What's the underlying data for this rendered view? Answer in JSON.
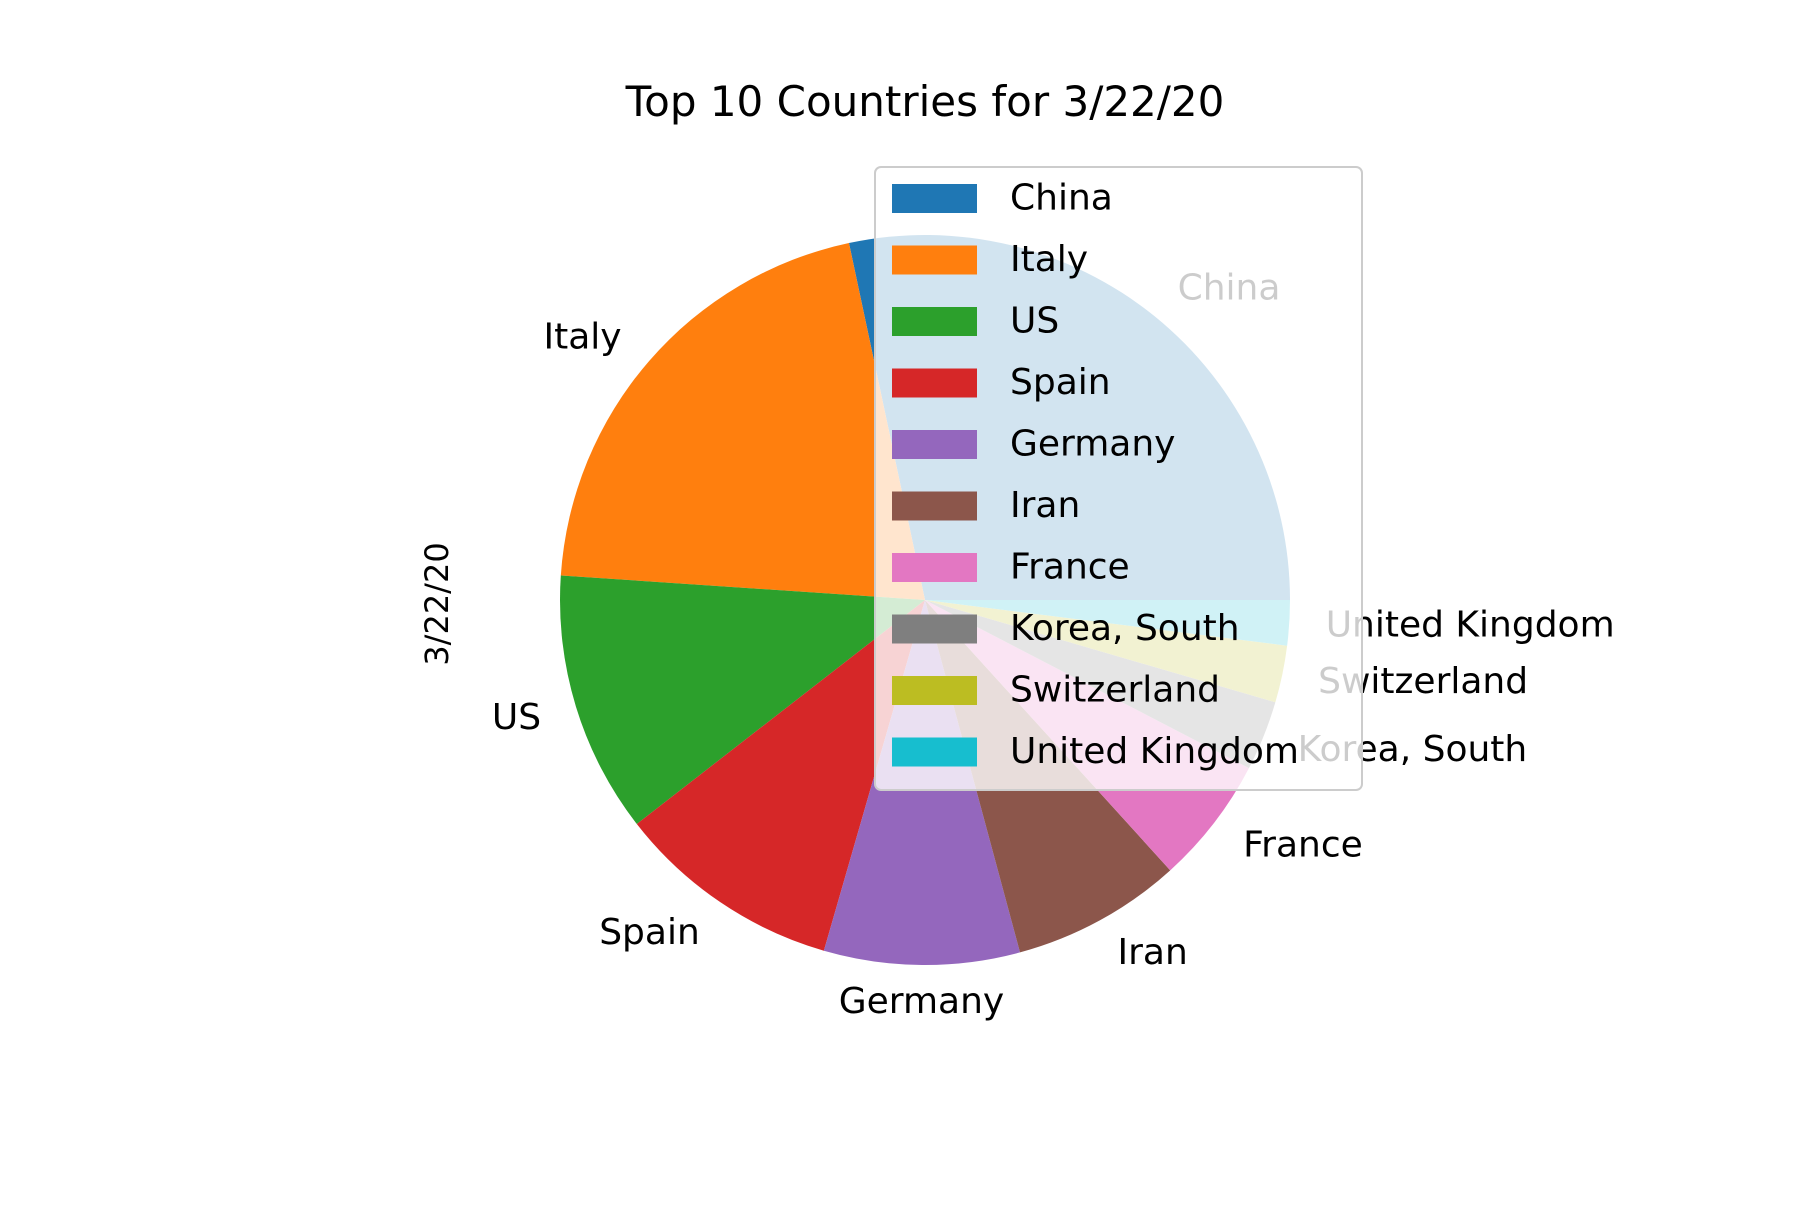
{
  "chart_data": {
    "type": "pie",
    "title": "Top 10 Countries for 3/22/20",
    "ylabel": "3/22/20",
    "start_angle_deg": 0,
    "direction": "counterclockwise",
    "legend_position": "upper-right",
    "legend_labels": [
      "China",
      "Italy",
      "US",
      "Spain",
      "Germany",
      "Iran",
      "France",
      "Korea, South",
      "Switzerland",
      "United Kingdom"
    ],
    "slices": [
      {
        "label": "China",
        "value": 81397,
        "color": "#1f77b4"
      },
      {
        "label": "Italy",
        "value": 59138,
        "color": "#ff7f0e"
      },
      {
        "label": "US",
        "value": 33272,
        "color": "#2ca02c"
      },
      {
        "label": "Spain",
        "value": 28768,
        "color": "#d62728"
      },
      {
        "label": "Germany",
        "value": 24873,
        "color": "#9467bd"
      },
      {
        "label": "Iran",
        "value": 21638,
        "color": "#8c564b"
      },
      {
        "label": "France",
        "value": 16243,
        "color": "#e377c2"
      },
      {
        "label": "Korea, South",
        "value": 8897,
        "color": "#7f7f7f"
      },
      {
        "label": "Switzerland",
        "value": 7245,
        "color": "#bcbd22"
      },
      {
        "label": "United Kingdom",
        "value": 5741,
        "color": "#17becf"
      }
    ]
  }
}
